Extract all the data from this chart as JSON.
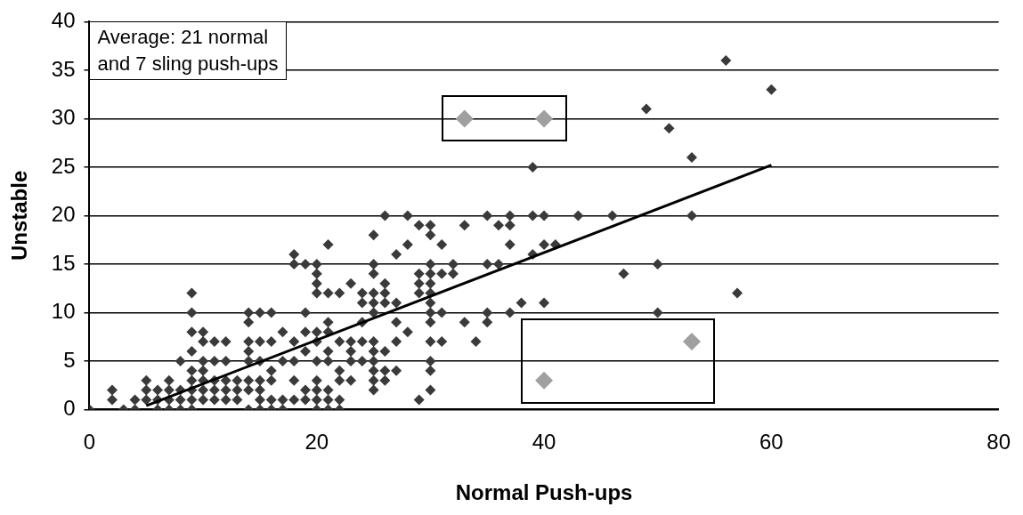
{
  "chart_data": {
    "type": "scatter",
    "xlabel": "Normal Push-ups",
    "ylabel": "Unstable",
    "annotations": [
      "Average: 21 normal\nand 7 sling push-ups"
    ],
    "xlim": [
      0,
      80
    ],
    "xticks": [
      0,
      20,
      40,
      60,
      80
    ],
    "ylim": [
      0,
      40
    ],
    "yticks": [
      0,
      5,
      10,
      15,
      20,
      25,
      30,
      35,
      40
    ],
    "grid": "y",
    "legend": false,
    "marker": "diamond",
    "series": [
      {
        "color": "#3a3a3a",
        "x": [
          0,
          2,
          2,
          3,
          4,
          4,
          5,
          5,
          5,
          6,
          6,
          6,
          7,
          7,
          7,
          7,
          8,
          8,
          8,
          8,
          9,
          9,
          9,
          9,
          9,
          9,
          9,
          9,
          9,
          10,
          10,
          10,
          10,
          10,
          10,
          10,
          11,
          11,
          11,
          11,
          11,
          12,
          12,
          12,
          12,
          12,
          13,
          13,
          13,
          14,
          14,
          14,
          14,
          14,
          14,
          14,
          14,
          15,
          15,
          15,
          15,
          15,
          15,
          15,
          16,
          16,
          16,
          16,
          16,
          16,
          17,
          17,
          17,
          17,
          18,
          18,
          18,
          18,
          18,
          18,
          19,
          19,
          19,
          19,
          19,
          19,
          20,
          20,
          20,
          20,
          20,
          20,
          20,
          20,
          20,
          20,
          20,
          21,
          21,
          21,
          21,
          21,
          21,
          21,
          21,
          21,
          22,
          22,
          22,
          22,
          22,
          22,
          23,
          23,
          23,
          23,
          23,
          24,
          24,
          24,
          24,
          24,
          25,
          25,
          25,
          25,
          25,
          25,
          25,
          25,
          25,
          25,
          25,
          25,
          26,
          26,
          26,
          26,
          26,
          26,
          26,
          27,
          27,
          27,
          27,
          27,
          28,
          28,
          28,
          29,
          29,
          29,
          29,
          29,
          30,
          30,
          30,
          30,
          30,
          30,
          30,
          30,
          30,
          30,
          30,
          30,
          30,
          31,
          31,
          31,
          31,
          32,
          32,
          33,
          33,
          34,
          35,
          35,
          35,
          35,
          36,
          36,
          37,
          37,
          37,
          37,
          38,
          39,
          39,
          39,
          40,
          40,
          40,
          41,
          43,
          46,
          47,
          49,
          50,
          50,
          51,
          53,
          53,
          56,
          57,
          60
        ],
        "values": [
          0,
          2,
          1,
          0,
          0,
          1,
          3,
          2,
          1,
          1,
          0,
          2,
          3,
          2,
          1,
          0,
          0,
          1,
          2,
          5,
          0,
          1,
          2,
          3,
          12,
          10,
          8,
          6,
          4,
          8,
          7,
          5,
          4,
          1,
          2,
          3,
          7,
          5,
          1,
          2,
          3,
          7,
          5,
          1,
          2,
          3,
          1,
          2,
          3,
          10,
          9,
          7,
          6,
          5,
          3,
          2,
          0,
          10,
          7,
          5,
          3,
          2,
          1,
          0,
          10,
          7,
          4,
          3,
          1,
          0,
          8,
          5,
          1,
          0,
          16,
          15,
          7,
          5,
          3,
          1,
          15,
          10,
          8,
          6,
          2,
          1,
          15,
          14,
          13,
          12,
          8,
          7,
          5,
          3,
          2,
          1,
          0,
          17,
          12,
          9,
          8,
          6,
          5,
          2,
          1,
          0,
          12,
          7,
          4,
          3,
          1,
          0,
          13,
          7,
          6,
          5,
          3,
          12,
          11,
          9,
          7,
          5,
          18,
          15,
          14,
          12,
          11,
          10,
          7,
          6,
          5,
          4,
          3,
          2,
          20,
          13,
          12,
          11,
          6,
          4,
          3,
          16,
          11,
          9,
          7,
          4,
          20,
          17,
          8,
          19,
          14,
          13,
          12,
          1,
          19,
          18,
          15,
          14,
          13,
          12,
          11,
          10,
          9,
          7,
          5,
          4,
          2,
          17,
          14,
          10,
          7,
          15,
          14,
          19,
          9,
          7,
          20,
          15,
          10,
          9,
          19,
          15,
          20,
          19,
          17,
          10,
          11,
          25,
          20,
          16,
          20,
          17,
          11,
          17,
          20,
          20,
          14,
          31,
          15,
          10,
          29,
          26,
          20,
          36,
          12,
          33
        ]
      },
      {
        "color": "#a0a0a0",
        "x": [
          33,
          40
        ],
        "values": [
          30,
          30
        ]
      },
      {
        "color": "#a0a0a0",
        "x": [
          40,
          53
        ],
        "values": [
          3,
          7
        ]
      },
      {
        "type": "line",
        "marker": "none",
        "color": "#000000",
        "x": [
          5,
          60
        ],
        "values": [
          0.4,
          25.2
        ]
      }
    ]
  }
}
